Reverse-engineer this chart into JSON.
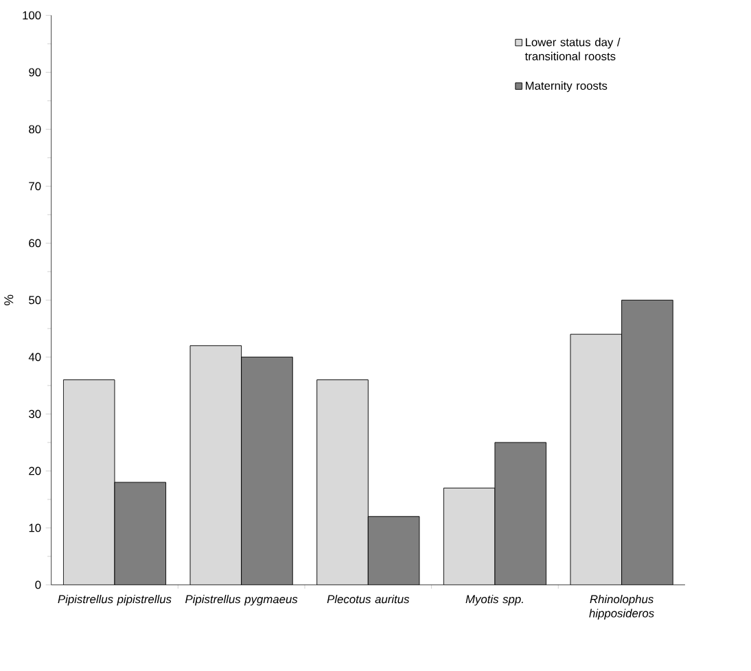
{
  "chart_data": {
    "type": "bar",
    "ylabel": "%",
    "categories": [
      "Pipistrellus pipistrellus",
      "Pipistrellus pygmaeus",
      "Plecotus auritus",
      "Myotis spp.",
      "Rhinolophus hipposideros"
    ],
    "series": [
      {
        "name": "Lower status day / transitional roosts",
        "color": "#d9d9d9",
        "values": [
          36,
          42,
          36,
          17,
          44
        ]
      },
      {
        "name": "Maternity roosts",
        "color": "#7f7f7f",
        "values": [
          18,
          40,
          12,
          25,
          50
        ]
      }
    ],
    "ylim": [
      0,
      100
    ],
    "yticks": [
      0,
      10,
      20,
      30,
      40,
      50,
      60,
      70,
      80,
      90,
      100
    ],
    "grid": false,
    "legend": "top right"
  }
}
